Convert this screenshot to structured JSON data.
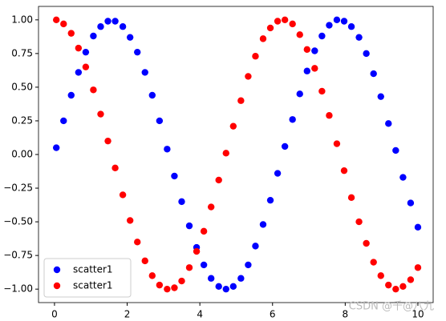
{
  "chart_data": {
    "type": "scatter",
    "x": [
      0.05,
      0.25,
      0.46,
      0.66,
      0.86,
      1.07,
      1.27,
      1.47,
      1.67,
      1.88,
      2.08,
      2.28,
      2.49,
      2.69,
      2.89,
      3.1,
      3.3,
      3.5,
      3.71,
      3.91,
      4.11,
      4.31,
      4.52,
      4.72,
      4.92,
      5.13,
      5.33,
      5.53,
      5.74,
      5.94,
      6.14,
      6.34,
      6.55,
      6.75,
      6.95,
      7.16,
      7.36,
      7.56,
      7.77,
      7.97,
      8.17,
      8.38,
      8.58,
      8.78,
      8.98,
      9.19,
      9.39,
      9.59,
      9.8,
      10.0
    ],
    "series": [
      {
        "name": "scatter1",
        "color": "#0000ff",
        "values": [
          0.05,
          0.25,
          0.44,
          0.61,
          0.76,
          0.88,
          0.95,
          0.99,
          0.99,
          0.95,
          0.87,
          0.76,
          0.61,
          0.44,
          0.25,
          0.04,
          -0.16,
          -0.35,
          -0.53,
          -0.69,
          -0.82,
          -0.92,
          -0.98,
          -1.0,
          -0.98,
          -0.92,
          -0.82,
          -0.68,
          -0.52,
          -0.34,
          -0.14,
          0.06,
          0.26,
          0.45,
          0.62,
          0.77,
          0.88,
          0.96,
          1.0,
          0.99,
          0.95,
          0.87,
          0.75,
          0.6,
          0.43,
          0.23,
          0.03,
          -0.17,
          -0.36,
          -0.54
        ]
      },
      {
        "name": "scatter1",
        "color": "#ff0000",
        "values": [
          1.0,
          0.97,
          0.9,
          0.79,
          0.65,
          0.48,
          0.3,
          0.1,
          -0.1,
          -0.3,
          -0.49,
          -0.65,
          -0.79,
          -0.9,
          -0.97,
          -1.0,
          -0.99,
          -0.94,
          -0.84,
          -0.72,
          -0.57,
          -0.39,
          -0.19,
          0.01,
          0.21,
          0.4,
          0.58,
          0.73,
          0.86,
          0.94,
          0.99,
          1.0,
          0.97,
          0.89,
          0.78,
          0.64,
          0.47,
          0.29,
          0.08,
          -0.12,
          -0.32,
          -0.5,
          -0.66,
          -0.8,
          -0.9,
          -0.97,
          -1.0,
          -0.98,
          -0.93,
          -0.84
        ]
      }
    ],
    "xlim": [
      -0.44,
      10.42
    ],
    "ylim": [
      -1.1,
      1.1
    ],
    "xticks": [
      0,
      2,
      4,
      6,
      8,
      10
    ],
    "yticks": [
      {
        "value": -1,
        "label": "−1.00"
      },
      {
        "value": -0.75,
        "label": "−0.75"
      },
      {
        "value": -0.5,
        "label": "−0.50"
      },
      {
        "value": -0.25,
        "label": "−0.25"
      },
      {
        "value": 0,
        "label": "0.00"
      },
      {
        "value": 0.25,
        "label": "0.25"
      },
      {
        "value": 0.5,
        "label": "0.50"
      },
      {
        "value": 0.75,
        "label": "0.75"
      },
      {
        "value": 1,
        "label": "1.00"
      }
    ],
    "legend": "lower left",
    "watermark": "CSDN @千@八九"
  }
}
